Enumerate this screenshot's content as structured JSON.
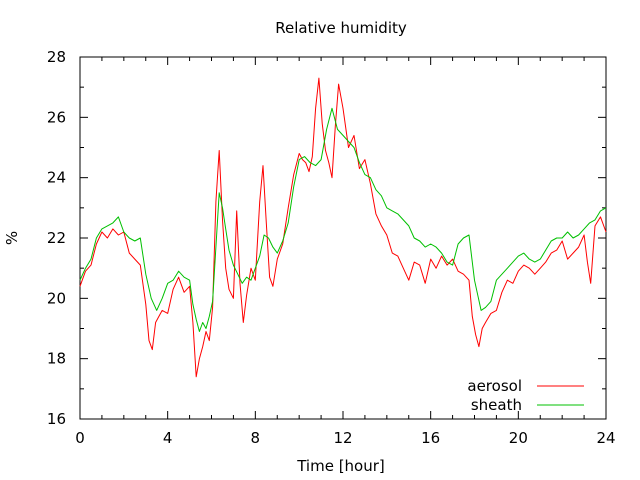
{
  "chart_data": {
    "type": "line",
    "title": "Relative humidity",
    "xlabel": "Time [hour]",
    "ylabel": "%",
    "xlim": [
      0,
      24
    ],
    "ylim": [
      16,
      28
    ],
    "xticks": [
      0,
      4,
      8,
      12,
      16,
      20,
      24
    ],
    "yticks": [
      16,
      18,
      20,
      22,
      24,
      26,
      28
    ],
    "grid": false,
    "legend_position": "bottom-right",
    "series": [
      {
        "name": "aerosol",
        "color": "#ff0000",
        "x": [
          0,
          0.25,
          0.5,
          0.75,
          1.0,
          1.25,
          1.5,
          1.75,
          2.0,
          2.25,
          2.5,
          2.75,
          3.0,
          3.15,
          3.3,
          3.45,
          3.6,
          3.75,
          4.0,
          4.25,
          4.5,
          4.75,
          5.0,
          5.15,
          5.3,
          5.45,
          5.6,
          5.75,
          5.9,
          6.05,
          6.2,
          6.35,
          6.5,
          6.65,
          6.8,
          7.0,
          7.15,
          7.3,
          7.45,
          7.6,
          7.8,
          8.0,
          8.2,
          8.35,
          8.5,
          8.65,
          8.8,
          9.0,
          9.25,
          9.5,
          9.75,
          10.0,
          10.15,
          10.3,
          10.45,
          10.6,
          10.75,
          10.9,
          11.05,
          11.2,
          11.35,
          11.5,
          11.65,
          11.8,
          12.0,
          12.25,
          12.5,
          12.75,
          13.0,
          13.25,
          13.5,
          13.75,
          14.0,
          14.25,
          14.5,
          14.75,
          15.0,
          15.25,
          15.5,
          15.75,
          16.0,
          16.25,
          16.5,
          16.75,
          17.0,
          17.25,
          17.5,
          17.75,
          17.9,
          18.05,
          18.2,
          18.35,
          18.5,
          18.75,
          19.0,
          19.25,
          19.5,
          19.75,
          20.0,
          20.25,
          20.5,
          20.75,
          21.0,
          21.25,
          21.5,
          21.75,
          22.0,
          22.25,
          22.5,
          22.75,
          23.0,
          23.15,
          23.3,
          23.5,
          23.75,
          24.0
        ],
        "values": [
          20.4,
          20.9,
          21.1,
          21.8,
          22.2,
          22.0,
          22.3,
          22.1,
          22.2,
          21.5,
          21.3,
          21.1,
          19.8,
          18.6,
          18.3,
          19.2,
          19.4,
          19.6,
          19.5,
          20.3,
          20.7,
          20.2,
          20.4,
          19.2,
          17.4,
          18.0,
          18.4,
          18.9,
          18.6,
          19.7,
          23.2,
          24.9,
          22.6,
          21.0,
          20.3,
          20.0,
          22.9,
          20.5,
          19.2,
          20.1,
          21.0,
          20.6,
          23.2,
          24.4,
          22.5,
          20.7,
          20.4,
          21.3,
          21.8,
          23.0,
          24.1,
          24.8,
          24.6,
          24.5,
          24.2,
          24.7,
          26.3,
          27.3,
          25.8,
          24.9,
          24.5,
          24.0,
          25.7,
          27.1,
          26.3,
          25.0,
          25.4,
          24.3,
          24.6,
          23.8,
          22.8,
          22.4,
          22.1,
          21.5,
          21.4,
          21.0,
          20.6,
          21.2,
          21.1,
          20.5,
          21.3,
          21.0,
          21.4,
          21.1,
          21.3,
          20.9,
          20.8,
          20.6,
          19.4,
          18.8,
          18.4,
          19.0,
          19.2,
          19.5,
          19.6,
          20.2,
          20.6,
          20.5,
          20.9,
          21.1,
          21.0,
          20.8,
          21.0,
          21.2,
          21.5,
          21.6,
          21.9,
          21.3,
          21.5,
          21.7,
          22.1,
          21.2,
          20.5,
          22.4,
          22.7,
          22.2
        ]
      },
      {
        "name": "sheath",
        "color": "#00c000",
        "x": [
          0,
          0.25,
          0.5,
          0.75,
          1.0,
          1.25,
          1.5,
          1.75,
          2.0,
          2.25,
          2.5,
          2.75,
          3.0,
          3.25,
          3.5,
          3.75,
          4.0,
          4.25,
          4.5,
          4.75,
          5.0,
          5.15,
          5.3,
          5.45,
          5.6,
          5.75,
          5.9,
          6.05,
          6.2,
          6.35,
          6.5,
          6.65,
          6.8,
          7.0,
          7.2,
          7.4,
          7.6,
          7.8,
          8.0,
          8.2,
          8.4,
          8.6,
          8.8,
          9.0,
          9.25,
          9.5,
          9.75,
          10.0,
          10.25,
          10.5,
          10.75,
          11.0,
          11.25,
          11.5,
          11.75,
          12.0,
          12.25,
          12.5,
          12.75,
          13.0,
          13.25,
          13.5,
          13.75,
          14.0,
          14.25,
          14.5,
          14.75,
          15.0,
          15.25,
          15.5,
          15.75,
          16.0,
          16.25,
          16.5,
          16.75,
          17.0,
          17.25,
          17.5,
          17.75,
          18.0,
          18.15,
          18.3,
          18.5,
          18.75,
          19.0,
          19.25,
          19.5,
          19.75,
          20.0,
          20.25,
          20.5,
          20.75,
          21.0,
          21.25,
          21.5,
          21.75,
          22.0,
          22.25,
          22.5,
          22.75,
          23.0,
          23.25,
          23.5,
          23.75,
          24.0
        ],
        "values": [
          20.6,
          21.0,
          21.3,
          22.0,
          22.3,
          22.4,
          22.5,
          22.7,
          22.2,
          22.0,
          21.9,
          22.0,
          20.8,
          20.0,
          19.6,
          20.0,
          20.5,
          20.6,
          20.9,
          20.7,
          20.6,
          19.8,
          19.3,
          18.9,
          19.2,
          19.0,
          19.4,
          19.9,
          21.7,
          23.5,
          23.0,
          22.3,
          21.6,
          21.1,
          20.8,
          20.5,
          20.7,
          20.6,
          21.0,
          21.4,
          22.1,
          22.0,
          21.7,
          21.5,
          21.9,
          22.5,
          23.7,
          24.6,
          24.7,
          24.5,
          24.4,
          24.6,
          25.6,
          26.3,
          25.6,
          25.4,
          25.2,
          25.0,
          24.5,
          24.1,
          24.0,
          23.6,
          23.4,
          23.0,
          22.9,
          22.8,
          22.6,
          22.4,
          22.0,
          21.9,
          21.7,
          21.8,
          21.7,
          21.5,
          21.2,
          21.1,
          21.8,
          22.0,
          22.1,
          20.6,
          20.1,
          19.6,
          19.7,
          19.9,
          20.6,
          20.8,
          21.0,
          21.2,
          21.4,
          21.5,
          21.3,
          21.2,
          21.3,
          21.6,
          21.9,
          22.0,
          22.0,
          22.2,
          22.0,
          22.1,
          22.3,
          22.5,
          22.6,
          22.9,
          23.0
        ]
      }
    ]
  }
}
